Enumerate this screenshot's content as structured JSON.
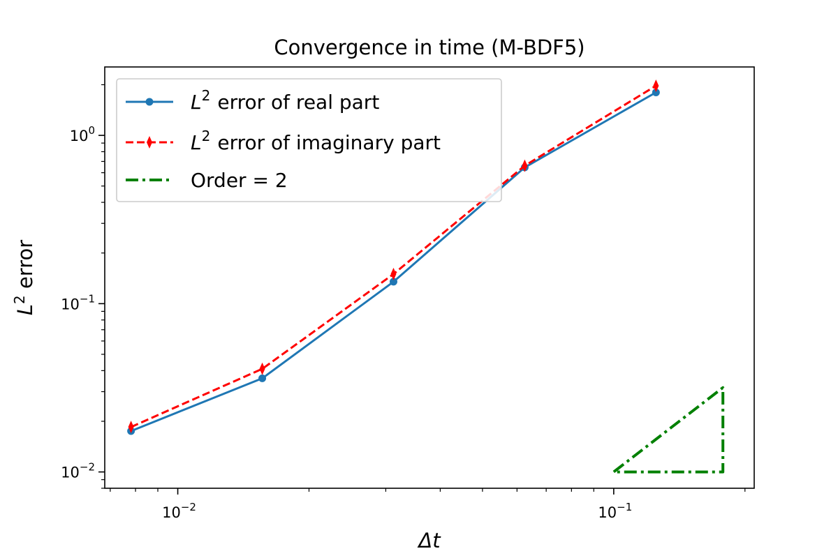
{
  "chart_data": {
    "type": "line",
    "title": "Convergence in time (M-BDF5)",
    "xlabel": "Δt",
    "ylabel_base": "L",
    "ylabel_sup": "2",
    "ylabel_suffix": " error",
    "xscale": "log",
    "yscale": "log",
    "xlim": [
      0.0068,
      0.21
    ],
    "ylim": [
      0.008,
      2.55
    ],
    "xticks_major": [
      {
        "value": 0.01,
        "base": "10",
        "exp": "−2"
      },
      {
        "value": 0.1,
        "base": "10",
        "exp": "−1"
      }
    ],
    "yticks_major": [
      {
        "value": 0.01,
        "base": "10",
        "exp": "−2"
      },
      {
        "value": 0.1,
        "base": "10",
        "exp": "−1"
      },
      {
        "value": 1,
        "base": "10",
        "exp": "0"
      }
    ],
    "grid": false,
    "legend_position": "top-left",
    "series": [
      {
        "name": "error of real part",
        "name_prefix": "L",
        "name_sup": "2",
        "color": "#1f77b4",
        "line_style": "solid",
        "marker": "circle",
        "x": [
          0.0078125,
          0.015625,
          0.03125,
          0.0625,
          0.125
        ],
        "y": [
          0.0175,
          0.036,
          0.135,
          0.645,
          1.8
        ]
      },
      {
        "name": "error of imaginary part",
        "name_prefix": "L",
        "name_sup": "2",
        "color": "#ff0000",
        "line_style": "dashed",
        "marker": "thin-diamond",
        "x": [
          0.0078125,
          0.015625,
          0.03125,
          0.0625,
          0.125
        ],
        "y": [
          0.0185,
          0.041,
          0.15,
          0.66,
          1.97
        ]
      },
      {
        "name": "Order = 2",
        "color": "#008000",
        "line_style": "dashdot",
        "marker": "none",
        "x": [
          0.1,
          0.178,
          0.178,
          0.1
        ],
        "y": [
          0.01,
          0.0317,
          0.01,
          0.01
        ]
      }
    ]
  }
}
